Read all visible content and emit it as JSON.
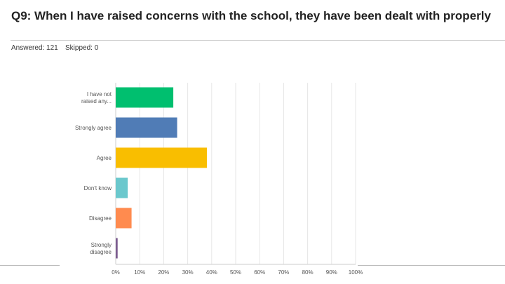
{
  "title": "Q9: When I have raised concerns with the school, they have been dealt with properly",
  "answered": "Answered: 121",
  "skipped": "Skipped: 0",
  "chart_data": {
    "type": "bar",
    "orientation": "horizontal",
    "categories": [
      [
        "I have not",
        "raised any..."
      ],
      [
        "Strongly agree"
      ],
      [
        "Agree"
      ],
      [
        "Don't know"
      ],
      [
        "Disagree"
      ],
      [
        "Strongly",
        "disagree"
      ]
    ],
    "values": [
      24.0,
      25.6,
      38.0,
      5.0,
      6.6,
      0.8
    ],
    "colors": [
      "#00bf6f",
      "#507cb6",
      "#f9be00",
      "#6bc8cd",
      "#ff8b4f",
      "#7d5e90"
    ],
    "xticks": [
      "0%",
      "10%",
      "20%",
      "30%",
      "40%",
      "50%",
      "60%",
      "70%",
      "80%",
      "90%",
      "100%"
    ],
    "xlim": [
      0,
      100
    ],
    "grid": true
  }
}
